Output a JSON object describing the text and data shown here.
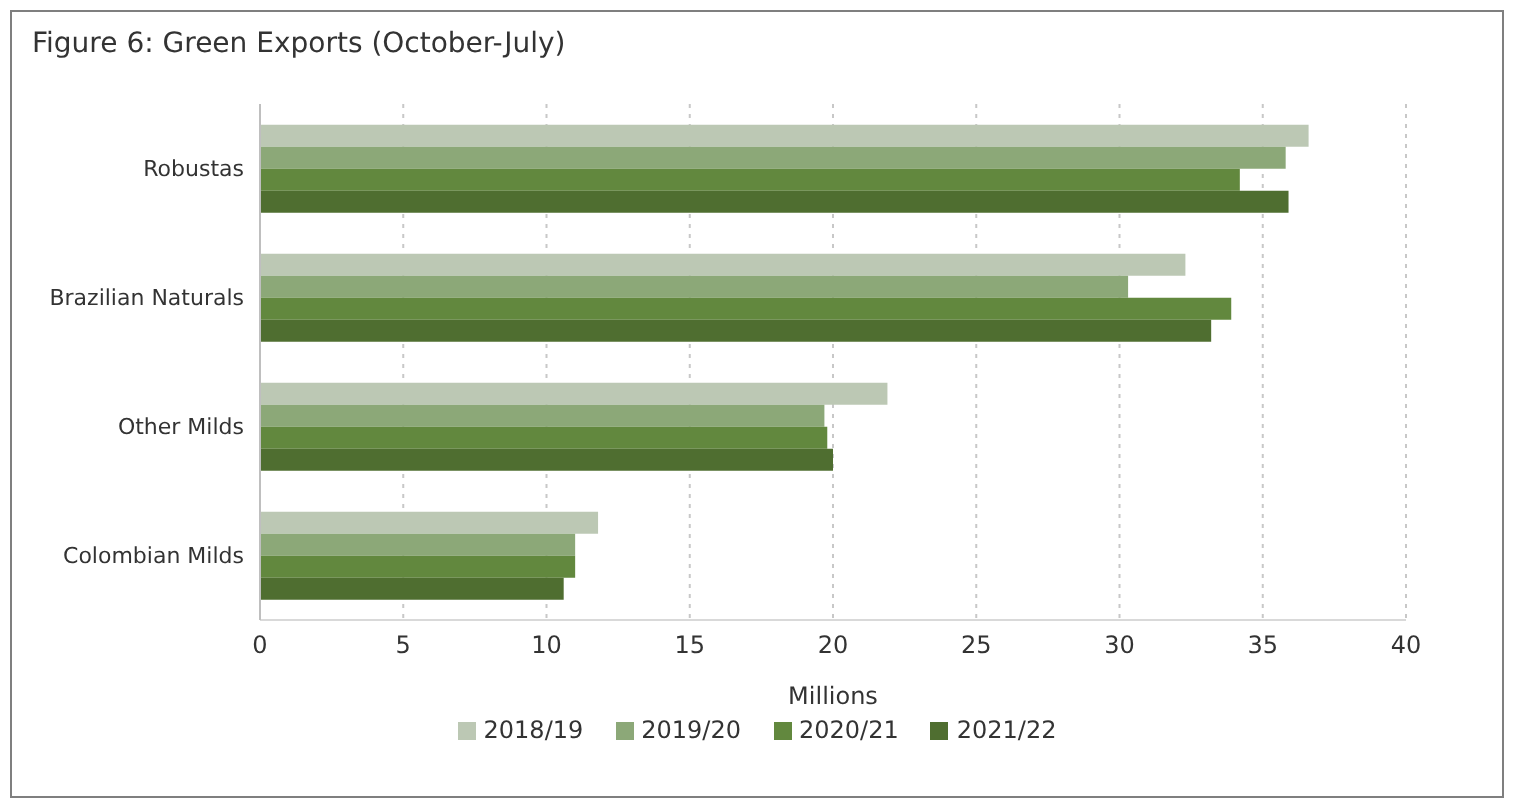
{
  "chart_data": {
    "type": "bar",
    "orientation": "horizontal",
    "title": "Figure 6: Green Exports (October-July)",
    "xlabel": "Millions",
    "categories": [
      "Robustas",
      "Brazilian Naturals",
      "Other Milds",
      "Colombian Milds"
    ],
    "series": [
      {
        "name": "2018/19",
        "color": "#bcc8b4",
        "values": [
          36.6,
          32.3,
          21.9,
          11.8
        ]
      },
      {
        "name": "2019/20",
        "color": "#8ca878",
        "values": [
          35.8,
          30.3,
          19.7,
          11.0
        ]
      },
      {
        "name": "2020/21",
        "color": "#62883e",
        "values": [
          34.2,
          33.9,
          19.8,
          11.0
        ]
      },
      {
        "name": "2021/22",
        "color": "#4f6e30",
        "values": [
          35.9,
          33.2,
          20.0,
          10.6
        ]
      }
    ],
    "xlim": [
      0,
      40
    ],
    "xticks": [
      0,
      5,
      10,
      15,
      20,
      25,
      30,
      35,
      40
    ],
    "grid": "x",
    "legend": "bottom"
  }
}
